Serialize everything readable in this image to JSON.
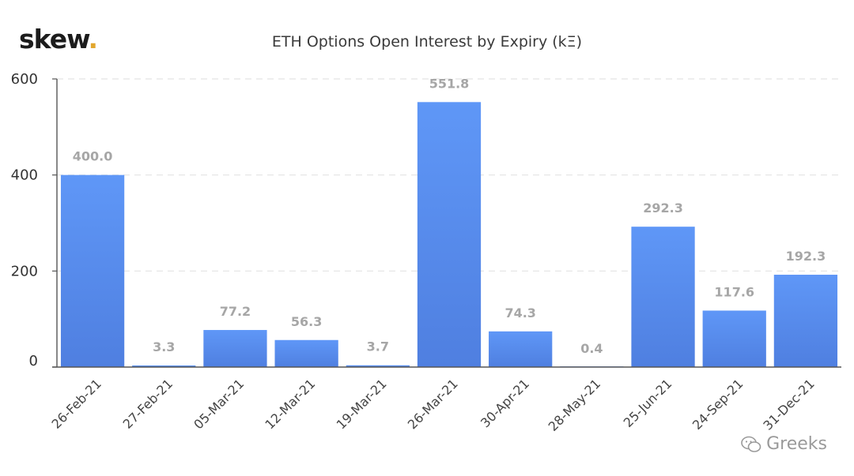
{
  "brand": {
    "name": "skew",
    "dot": "."
  },
  "watermark": {
    "text": "Greeks",
    "icon": "wechat-icon"
  },
  "chart_data": {
    "type": "bar",
    "title": "ETH Options Open Interest by Expiry (kΞ)",
    "xlabel": "",
    "ylabel": "",
    "categories": [
      "26-Feb-21",
      "27-Feb-21",
      "05-Mar-21",
      "12-Mar-21",
      "19-Mar-21",
      "26-Mar-21",
      "30-Apr-21",
      "28-May-21",
      "25-Jun-21",
      "24-Sep-21",
      "31-Dec-21"
    ],
    "values": [
      400.0,
      3.3,
      77.2,
      56.3,
      3.7,
      551.8,
      74.3,
      0.4,
      292.3,
      117.6,
      192.3
    ],
    "data_labels": [
      "400.0",
      "3.3",
      "77.2",
      "56.3",
      "3.7",
      "551.8",
      "74.3",
      "0.4",
      "292.3",
      "117.6",
      "192.3"
    ],
    "ylim": [
      0,
      600
    ],
    "yticks": [
      0,
      200,
      400,
      600
    ],
    "grid": true,
    "legend": "none",
    "colors": {
      "bar_top": "#5f97f7",
      "bar_bottom": "#4f7fe0",
      "label": "#a6a6a6",
      "grid": "#e3e3e3",
      "axis": "#555555"
    }
  }
}
